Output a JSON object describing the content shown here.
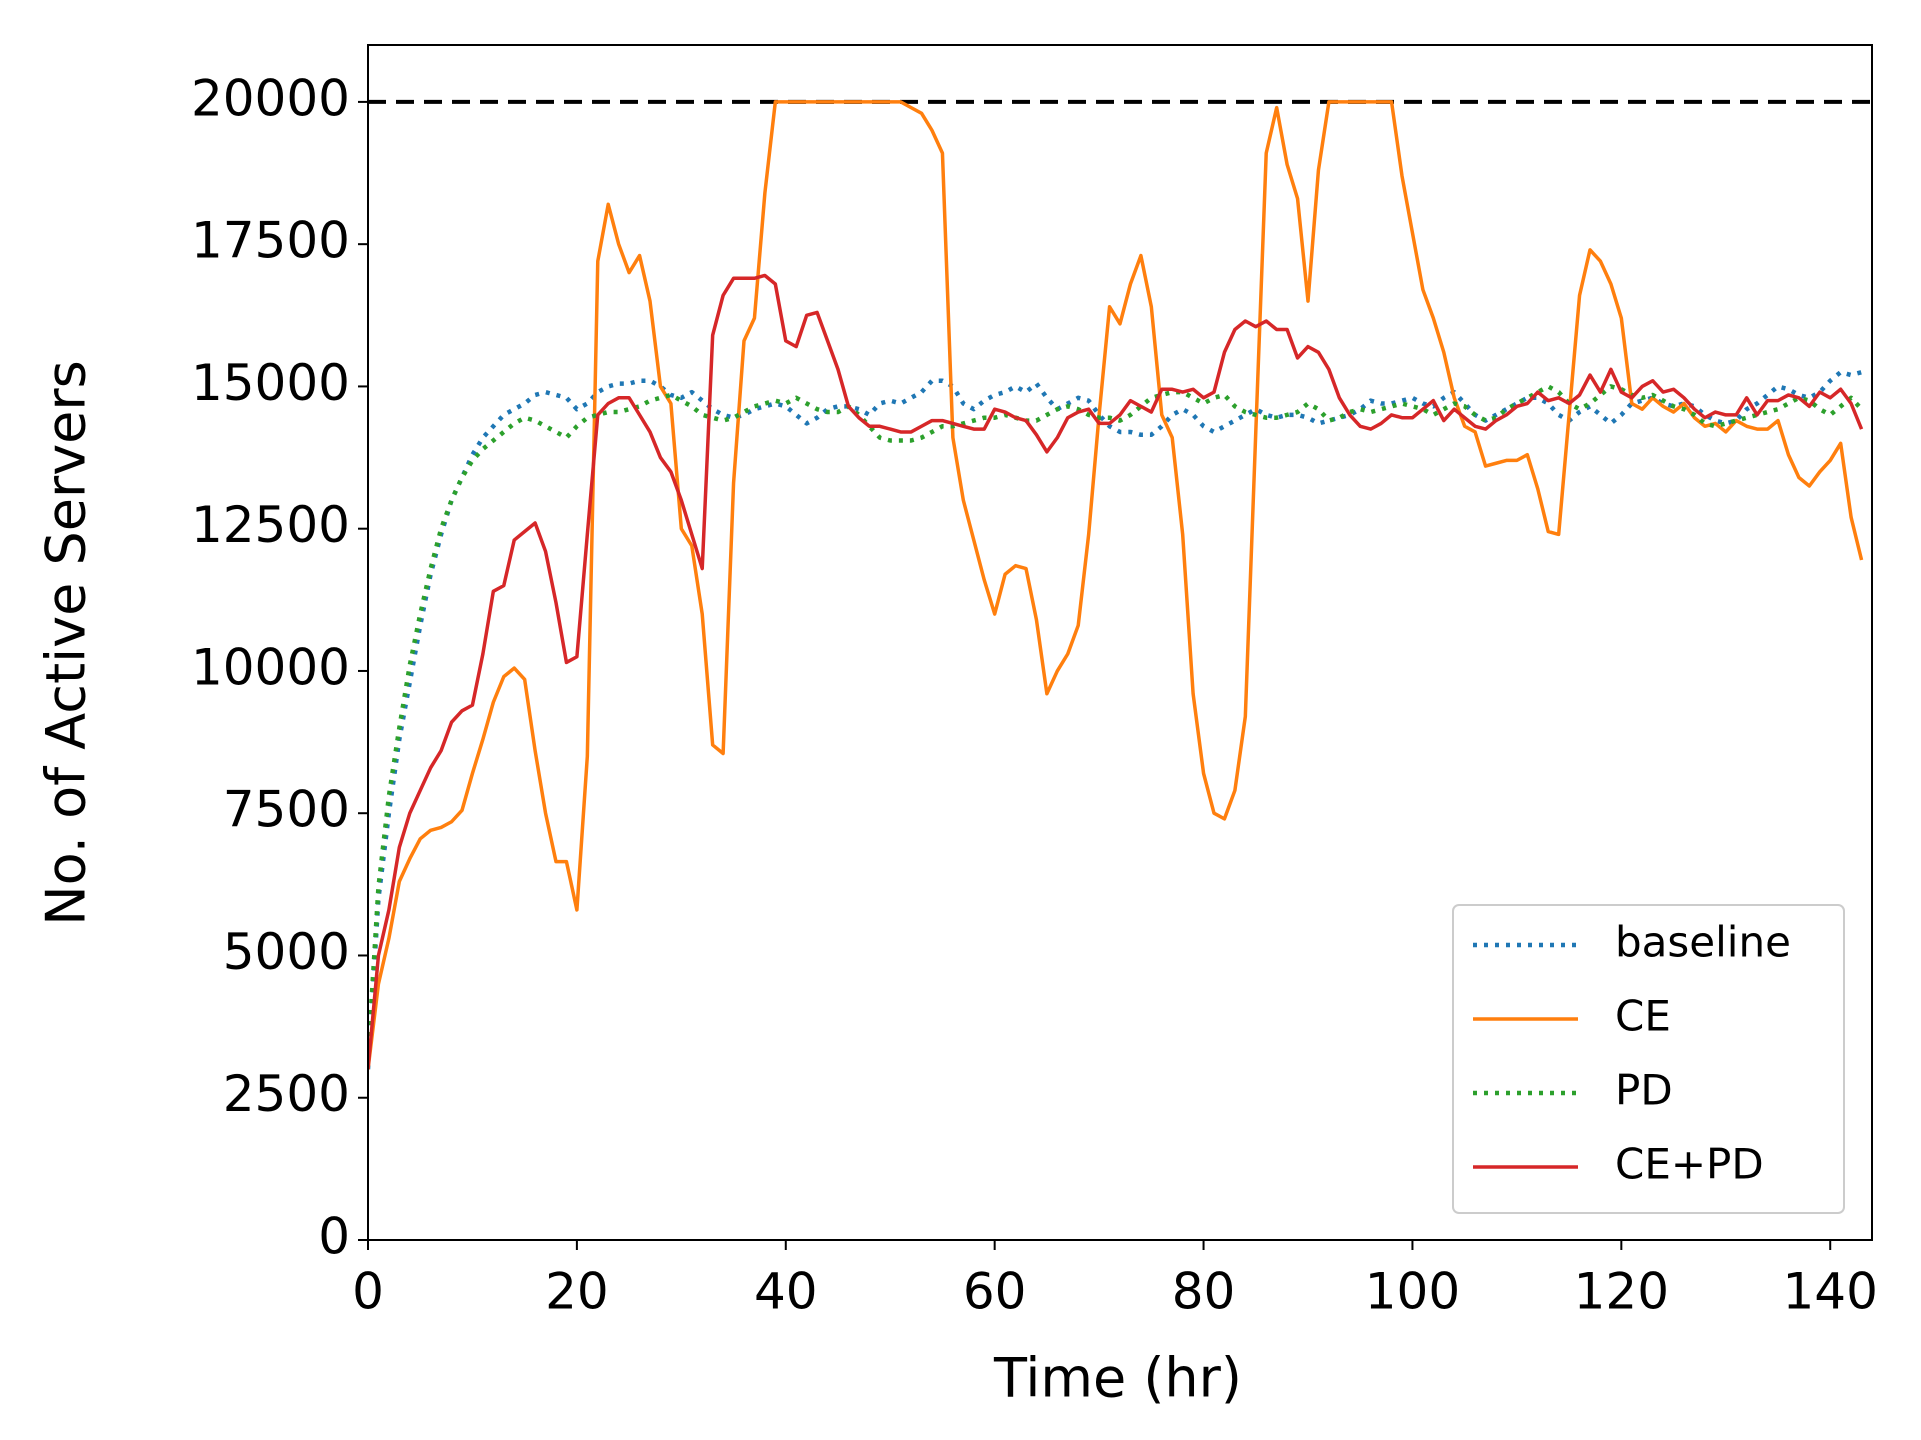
{
  "chart_data": {
    "type": "line",
    "xlabel": "Time (hr)",
    "ylabel": "No. of Active Servers",
    "xlim": [
      0,
      144
    ],
    "ylim": [
      0,
      21000
    ],
    "xticks": [
      0,
      20,
      40,
      60,
      80,
      100,
      120,
      140
    ],
    "yticks": [
      0,
      2500,
      5000,
      7500,
      10000,
      12500,
      15000,
      17500,
      20000
    ],
    "legend_position": "lower right",
    "hline": {
      "y": 20000,
      "color": "#000000",
      "linestyle": "dashed"
    },
    "x": [
      0,
      1,
      2,
      3,
      4,
      5,
      6,
      7,
      8,
      9,
      10,
      11,
      12,
      13,
      14,
      15,
      16,
      17,
      18,
      19,
      20,
      21,
      22,
      23,
      24,
      25,
      26,
      27,
      28,
      29,
      30,
      31,
      32,
      33,
      34,
      35,
      36,
      37,
      38,
      39,
      40,
      41,
      42,
      43,
      44,
      45,
      46,
      47,
      48,
      49,
      50,
      51,
      52,
      53,
      54,
      55,
      56,
      57,
      58,
      59,
      60,
      61,
      62,
      63,
      64,
      65,
      66,
      67,
      68,
      69,
      70,
      71,
      72,
      73,
      74,
      75,
      76,
      77,
      78,
      79,
      80,
      81,
      82,
      83,
      84,
      85,
      86,
      87,
      88,
      89,
      90,
      91,
      92,
      93,
      94,
      95,
      96,
      97,
      98,
      99,
      100,
      101,
      102,
      103,
      104,
      105,
      106,
      107,
      108,
      109,
      110,
      111,
      112,
      113,
      114,
      115,
      116,
      117,
      118,
      119,
      120,
      121,
      122,
      123,
      124,
      125,
      126,
      127,
      128,
      129,
      130,
      131,
      132,
      133,
      134,
      135,
      136,
      137,
      138,
      139,
      140,
      141,
      142,
      143
    ],
    "series": [
      {
        "name": "baseline",
        "color": "#1f77b4",
        "linestyle": "dotted",
        "values": [
          3000,
          6000,
          7500,
          8800,
          9800,
          10800,
          11700,
          12400,
          13000,
          13400,
          13800,
          14100,
          14300,
          14500,
          14600,
          14700,
          14850,
          14900,
          14850,
          14800,
          14600,
          14700,
          14900,
          15000,
          15050,
          15050,
          15100,
          15100,
          15000,
          14850,
          14800,
          14900,
          14750,
          14600,
          14500,
          14450,
          14500,
          14600,
          14650,
          14700,
          14650,
          14500,
          14350,
          14450,
          14600,
          14650,
          14650,
          14600,
          14500,
          14700,
          14750,
          14700,
          14800,
          14900,
          15100,
          15100,
          15000,
          14700,
          14600,
          14750,
          14850,
          14900,
          15000,
          14900,
          15050,
          14800,
          14600,
          14700,
          14800,
          14750,
          14500,
          14300,
          14200,
          14200,
          14150,
          14150,
          14300,
          14500,
          14600,
          14500,
          14300,
          14200,
          14300,
          14400,
          14500,
          14600,
          14500,
          14450,
          14500,
          14500,
          14450,
          14350,
          14400,
          14450,
          14500,
          14600,
          14750,
          14700,
          14700,
          14750,
          14800,
          14700,
          14650,
          14800,
          14900,
          14700,
          14500,
          14400,
          14500,
          14600,
          14700,
          14800,
          14800,
          14700,
          14500,
          14400,
          14550,
          14650,
          14500,
          14350,
          14500,
          14700,
          14750,
          14800,
          14700,
          14650,
          14700,
          14650,
          14500,
          14400,
          14350,
          14400,
          14600,
          14700,
          14850,
          15000,
          14950,
          14850,
          14800,
          14900,
          15100,
          15250,
          15200,
          15250
        ]
      },
      {
        "name": "CE",
        "color": "#ff7f0e",
        "linestyle": "solid",
        "values": [
          3000,
          4500,
          5300,
          6300,
          6700,
          7050,
          7200,
          7250,
          7350,
          7550,
          8200,
          8800,
          9450,
          9900,
          10050,
          9850,
          8600,
          7500,
          6650,
          6650,
          5800,
          8500,
          17200,
          18200,
          17500,
          17000,
          17300,
          16500,
          15000,
          14700,
          12500,
          12200,
          11000,
          8700,
          8550,
          13300,
          15800,
          16200,
          18400,
          20000,
          20000,
          20000,
          20000,
          20000,
          20000,
          20000,
          20000,
          20000,
          20000,
          20000,
          20000,
          20000,
          19900,
          19800,
          19500,
          19100,
          14100,
          13000,
          12300,
          11600,
          11000,
          11700,
          11850,
          11800,
          10900,
          9600,
          10000,
          10300,
          10800,
          12400,
          14500,
          16400,
          16100,
          16800,
          17300,
          16400,
          14500,
          14100,
          12400,
          9600,
          8200,
          7500,
          7400,
          7900,
          9200,
          14200,
          19100,
          19900,
          18900,
          18300,
          16500,
          18800,
          20000,
          20000,
          20000,
          20000,
          20000,
          20000,
          20000,
          18700,
          17700,
          16700,
          16200,
          15600,
          14800,
          14300,
          14200,
          13600,
          13650,
          13700,
          13700,
          13800,
          13200,
          12450,
          12400,
          14500,
          16600,
          17400,
          17200,
          16800,
          16200,
          14700,
          14600,
          14800,
          14650,
          14550,
          14700,
          14450,
          14300,
          14350,
          14200,
          14400,
          14300,
          14250,
          14250,
          14400,
          13800,
          13400,
          13250,
          13500,
          13700,
          14000,
          12700,
          11950
        ]
      },
      {
        "name": "PD",
        "color": "#2ca02c",
        "linestyle": "dotted",
        "values": [
          3200,
          6200,
          7800,
          9000,
          10100,
          11000,
          11800,
          12500,
          13000,
          13400,
          13700,
          13900,
          14050,
          14200,
          14350,
          14450,
          14400,
          14300,
          14200,
          14100,
          14300,
          14450,
          14500,
          14550,
          14550,
          14600,
          14650,
          14750,
          14800,
          14850,
          14750,
          14650,
          14500,
          14450,
          14400,
          14450,
          14550,
          14650,
          14700,
          14750,
          14700,
          14800,
          14700,
          14600,
          14550,
          14550,
          14650,
          14500,
          14300,
          14100,
          14050,
          14050,
          14050,
          14100,
          14200,
          14300,
          14300,
          14350,
          14400,
          14450,
          14450,
          14500,
          14450,
          14400,
          14400,
          14500,
          14600,
          14650,
          14600,
          14500,
          14450,
          14450,
          14400,
          14500,
          14650,
          14800,
          14850,
          14900,
          14900,
          14800,
          14700,
          14800,
          14850,
          14650,
          14550,
          14500,
          14450,
          14450,
          14500,
          14550,
          14700,
          14600,
          14400,
          14450,
          14550,
          14600,
          14550,
          14600,
          14650,
          14700,
          14650,
          14600,
          14500,
          14600,
          14700,
          14650,
          14500,
          14400,
          14450,
          14600,
          14700,
          14800,
          14900,
          15000,
          14900,
          14700,
          14600,
          14700,
          14850,
          15000,
          14950,
          14850,
          14800,
          14850,
          14750,
          14650,
          14600,
          14500,
          14350,
          14300,
          14350,
          14400,
          14450,
          14500,
          14550,
          14600,
          14700,
          14800,
          14750,
          14600,
          14500,
          14650,
          14800,
          14600
        ]
      },
      {
        "name": "CE+PD",
        "color": "#d62728",
        "linestyle": "solid",
        "values": [
          3000,
          5000,
          5800,
          6900,
          7500,
          7900,
          8300,
          8600,
          9100,
          9300,
          9400,
          10300,
          11400,
          11500,
          12300,
          12450,
          12600,
          12100,
          11200,
          10150,
          10250,
          12400,
          14500,
          14700,
          14800,
          14800,
          14500,
          14200,
          13750,
          13500,
          13000,
          12400,
          11800,
          15900,
          16600,
          16900,
          16900,
          16900,
          16950,
          16800,
          15800,
          15700,
          16250,
          16300,
          15800,
          15300,
          14650,
          14450,
          14300,
          14300,
          14250,
          14200,
          14200,
          14300,
          14400,
          14400,
          14350,
          14300,
          14250,
          14250,
          14600,
          14550,
          14450,
          14400,
          14150,
          13850,
          14100,
          14450,
          14550,
          14600,
          14350,
          14350,
          14500,
          14750,
          14650,
          14550,
          14950,
          14950,
          14900,
          14950,
          14800,
          14900,
          15600,
          16000,
          16150,
          16050,
          16150,
          16000,
          16000,
          15500,
          15700,
          15600,
          15300,
          14800,
          14500,
          14300,
          14250,
          14350,
          14500,
          14450,
          14450,
          14600,
          14750,
          14400,
          14600,
          14450,
          14300,
          14250,
          14400,
          14500,
          14650,
          14700,
          14900,
          14750,
          14800,
          14700,
          14850,
          15200,
          14900,
          15300,
          14900,
          14800,
          15000,
          15100,
          14900,
          14950,
          14800,
          14600,
          14450,
          14550,
          14500,
          14500,
          14800,
          14500,
          14750,
          14750,
          14850,
          14800,
          14650,
          14900,
          14800,
          14950,
          14700,
          14250
        ]
      }
    ]
  }
}
